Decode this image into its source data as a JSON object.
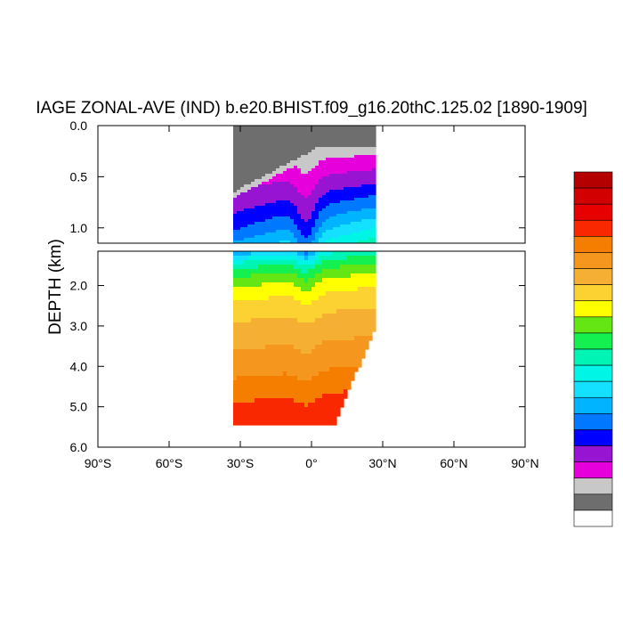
{
  "chart_data": {
    "type": "heatmap",
    "title": "IAGE ZONAL-AVE (IND) b.e20.BHIST.f09_g16.20thC.125.02 [1890-1909]",
    "ylabel": "DEPTH (km)",
    "xlabel": "",
    "x_ticks": [
      {
        "value": -90,
        "label": "90°S"
      },
      {
        "value": -60,
        "label": "60°S"
      },
      {
        "value": -30,
        "label": "30°S"
      },
      {
        "value": 0,
        "label": "0°"
      },
      {
        "value": 30,
        "label": "30°N"
      },
      {
        "value": 60,
        "label": "60°N"
      },
      {
        "value": 90,
        "label": "90°N"
      }
    ],
    "upper_panel": {
      "ylim": [
        0,
        1.15
      ],
      "y_ticks": [
        {
          "value": 0.0,
          "label": "0.0"
        },
        {
          "value": 0.5,
          "label": "0.5"
        },
        {
          "value": 1.0,
          "label": "1.0"
        }
      ]
    },
    "lower_panel": {
      "ylim": [
        1.15,
        6.0
      ],
      "y_ticks": [
        {
          "value": 2.0,
          "label": "2.0"
        },
        {
          "value": 3.0,
          "label": "3.0"
        },
        {
          "value": 4.0,
          "label": "4.0"
        },
        {
          "value": 5.0,
          "label": "5.0"
        },
        {
          "value": 6.0,
          "label": "6.0"
        }
      ]
    },
    "xlim": [
      -90,
      90
    ],
    "grid": false,
    "legend": "colorbar-right",
    "colorbar_colors": [
      "#b40000",
      "#d20000",
      "#e60000",
      "#fa2800",
      "#f57d00",
      "#f5961e",
      "#f5af32",
      "#fcd232",
      "#ffff00",
      "#64e614",
      "#14f050",
      "#00f5b4",
      "#00f5e6",
      "#14e1ff",
      "#00b4ff",
      "#0078ff",
      "#0000ff",
      "#9614d2",
      "#e600dc",
      "#c8c8c8",
      "#6e6e6e",
      "#ffffff"
    ],
    "depth_bands": [
      {
        "z": 0.05,
        "v": 20
      },
      {
        "z": 0.3,
        "v": 19
      },
      {
        "z": 0.45,
        "v": 18
      },
      {
        "z": 0.6,
        "v": 17
      },
      {
        "z": 0.72,
        "v": 16
      },
      {
        "z": 0.84,
        "v": 15
      },
      {
        "z": 0.95,
        "v": 14
      },
      {
        "z": 1.05,
        "v": 13
      },
      {
        "z": 1.15,
        "v": 12
      },
      {
        "z": 1.3,
        "v": 11
      },
      {
        "z": 1.5,
        "v": 10
      },
      {
        "z": 1.75,
        "v": 9
      },
      {
        "z": 2.1,
        "v": 8
      },
      {
        "z": 2.6,
        "v": 7
      },
      {
        "z": 3.3,
        "v": 6
      },
      {
        "z": 4.0,
        "v": 5
      },
      {
        "z": 4.6,
        "v": 4
      },
      {
        "z": 6.0,
        "v": 3
      }
    ],
    "data_extent": {
      "lat_min": -33,
      "lat_max": 26,
      "max_depth": 5.35
    },
    "surface_wedge_depth": {
      "lat_south": 0.65,
      "lat_north": 0.2
    }
  }
}
